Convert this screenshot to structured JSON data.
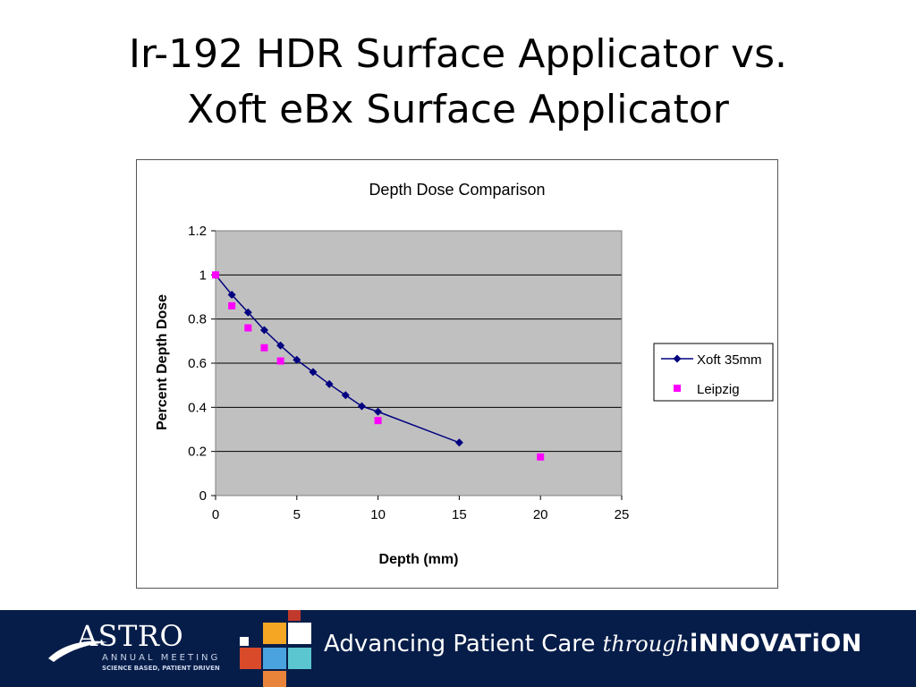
{
  "slide": {
    "title_line1": "Ir-192 HDR Surface Applicator vs.",
    "title_line2": "Xoft eBx Surface Applicator"
  },
  "chart_data": {
    "type": "scatter",
    "title": "Depth Dose Comparison",
    "xlabel": "Depth (mm)",
    "ylabel": "Percent Depth Dose",
    "xlim": [
      0,
      25
    ],
    "ylim": [
      0,
      1.2
    ],
    "x_ticks": [
      "0",
      "5",
      "10",
      "15",
      "20",
      "25"
    ],
    "y_ticks": [
      "0",
      "0.2",
      "0.4",
      "0.6",
      "0.8",
      "1",
      "1.2"
    ],
    "grid": "horizontal",
    "plot_background": "#c0c0c0",
    "legend_position": "right",
    "series": [
      {
        "name": "Xoft 35mm",
        "style": "line-with-diamond-markers",
        "color": "#000080",
        "points": [
          [
            0,
            1.0
          ],
          [
            1,
            0.91
          ],
          [
            2,
            0.83
          ],
          [
            3,
            0.75
          ],
          [
            4,
            0.68
          ],
          [
            5,
            0.615
          ],
          [
            6,
            0.56
          ],
          [
            7,
            0.505
          ],
          [
            8,
            0.455
          ],
          [
            9,
            0.405
          ],
          [
            10,
            0.38
          ],
          [
            15,
            0.24
          ]
        ]
      },
      {
        "name": "Leipzig",
        "style": "square-markers",
        "color": "#ff00ff",
        "points": [
          [
            0,
            1.0
          ],
          [
            1,
            0.86
          ],
          [
            2,
            0.76
          ],
          [
            3,
            0.67
          ],
          [
            4,
            0.61
          ],
          [
            10,
            0.34
          ],
          [
            20,
            0.175
          ]
        ]
      }
    ]
  },
  "footer": {
    "logo_text": "ASTRO",
    "logo_sub1": "ANNUAL MEETING",
    "logo_sub2": "SCIENCE BASED, PATIENT DRIVEN",
    "tagline_part1": "Advancing Patient Care ",
    "tagline_part2": "through",
    "tagline_part3": "iNNOVATiON",
    "background_color": "#071d49"
  }
}
